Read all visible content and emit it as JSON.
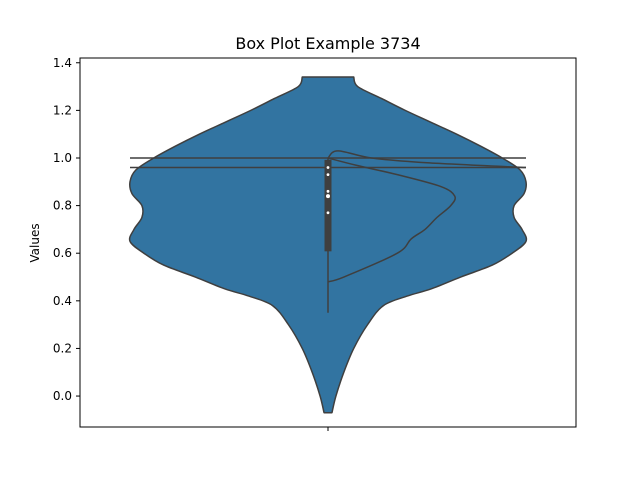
{
  "chart_data": {
    "type": "violin",
    "title": "Box Plot Example 3734",
    "xlabel": "",
    "ylabel": "Values",
    "ylim": [
      -0.13,
      1.42
    ],
    "yticks": [
      0.0,
      0.2,
      0.4,
      0.6,
      0.8,
      1.0,
      1.2,
      1.4
    ],
    "ytick_labels": [
      "0.0",
      "0.2",
      "0.4",
      "0.6",
      "0.8",
      "1.0",
      "1.2",
      "1.4"
    ],
    "xtick_labels": [
      ""
    ],
    "grid": false,
    "legend": "none",
    "colors": {
      "fill": "#3274a1",
      "edge": "#3f3f3f"
    },
    "violin": {
      "y_min": -0.07,
      "y_max": 1.34,
      "profile": [
        [
          -0.07,
          0.02
        ],
        [
          0.0,
          0.04
        ],
        [
          0.1,
          0.08
        ],
        [
          0.2,
          0.13
        ],
        [
          0.3,
          0.2
        ],
        [
          0.38,
          0.28
        ],
        [
          0.42,
          0.4
        ],
        [
          0.45,
          0.52
        ],
        [
          0.5,
          0.67
        ],
        [
          0.55,
          0.83
        ],
        [
          0.6,
          0.93
        ],
        [
          0.65,
          1.0
        ],
        [
          0.7,
          0.98
        ],
        [
          0.75,
          0.94
        ],
        [
          0.8,
          0.94
        ],
        [
          0.85,
          0.99
        ],
        [
          0.9,
          1.0
        ],
        [
          0.95,
          0.97
        ],
        [
          1.0,
          0.88
        ],
        [
          1.05,
          0.77
        ],
        [
          1.1,
          0.65
        ],
        [
          1.15,
          0.52
        ],
        [
          1.2,
          0.39
        ],
        [
          1.25,
          0.27
        ],
        [
          1.3,
          0.15
        ],
        [
          1.34,
          0.13
        ]
      ]
    },
    "inner_box": {
      "whisker_low": 0.35,
      "q1": 0.61,
      "median": 0.84,
      "q3": 0.99,
      "whisker_high": 1.0
    },
    "inner_points": [
      0.77,
      0.84,
      0.86,
      0.93,
      0.96
    ],
    "overlay_curves": [
      [
        [
          0.48,
          0.0
        ],
        [
          0.5,
          0.08
        ],
        [
          0.6,
          0.35
        ],
        [
          0.66,
          0.42
        ],
        [
          0.7,
          0.49
        ],
        [
          0.75,
          0.55
        ],
        [
          0.8,
          0.62
        ],
        [
          0.84,
          0.64
        ],
        [
          0.88,
          0.57
        ],
        [
          0.93,
          0.35
        ],
        [
          0.97,
          0.14
        ],
        [
          1.0,
          0.0
        ]
      ],
      [
        [
          1.0,
          1.0
        ],
        [
          1.0,
          -1.0
        ]
      ],
      [
        [
          0.96,
          1.0
        ],
        [
          0.96,
          -1.0
        ]
      ],
      [
        [
          1.0,
          0.0
        ],
        [
          1.03,
          0.05
        ],
        [
          1.0,
          0.22
        ],
        [
          0.98,
          0.5
        ],
        [
          0.96,
          1.0
        ]
      ]
    ]
  }
}
